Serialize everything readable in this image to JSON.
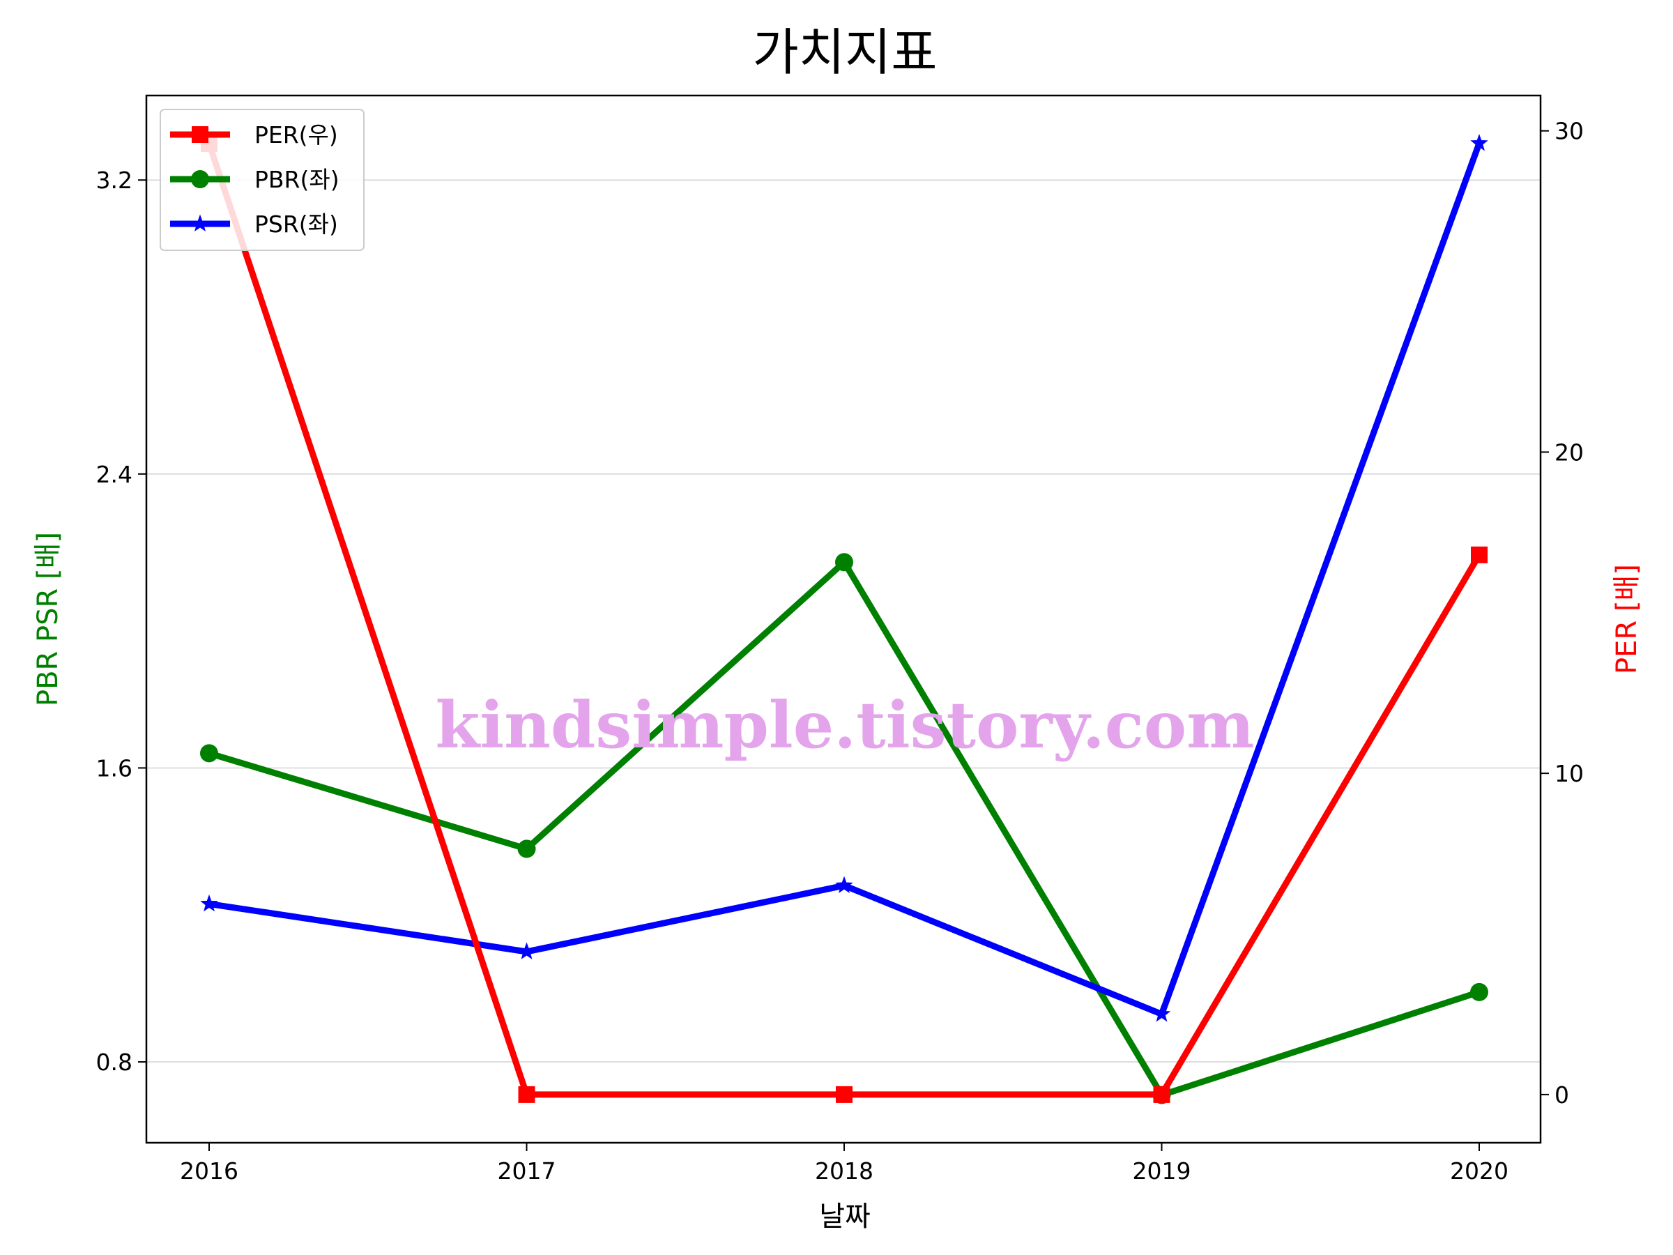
{
  "chart_data": {
    "type": "line",
    "title": "가치지표",
    "xlabel": "날짜",
    "ylabel_left": "PBR PSR [배]",
    "ylabel_right": "PER [배]",
    "categories": [
      "2016",
      "2017",
      "2018",
      "2019",
      "2020"
    ],
    "y_left_ticks": [
      "0.8",
      "1.6",
      "2.4",
      "3.2"
    ],
    "y_right_ticks": [
      "0",
      "10",
      "20",
      "30"
    ],
    "ylim_left": [
      0.58,
      3.43
    ],
    "ylim_right": [
      -1.5,
      31.1
    ],
    "grid": "horizontal (left axis)",
    "legend_position": "upper-left",
    "series": [
      {
        "name": "PER(우)",
        "axis": "right",
        "color": "#ff0000",
        "marker": "square",
        "values": [
          29.6,
          0,
          0,
          0,
          16.8
        ]
      },
      {
        "name": "PBR(좌)",
        "axis": "left",
        "color": "#008000",
        "marker": "circle",
        "values": [
          1.64,
          1.38,
          2.16,
          0.71,
          0.99
        ]
      },
      {
        "name": "PSR(좌)",
        "axis": "left",
        "color": "#0000ff",
        "marker": "star",
        "values": [
          1.23,
          1.1,
          1.28,
          0.93,
          3.3
        ]
      }
    ]
  },
  "watermark": "kindsimple.tistory.com"
}
